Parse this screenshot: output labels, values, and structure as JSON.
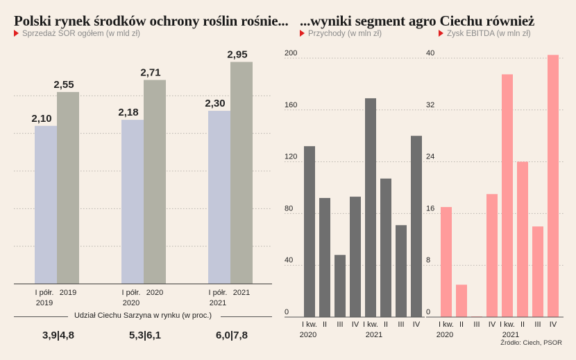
{
  "titles": {
    "left": "Polski rynek środków ochrony roślin rośnie...",
    "right": "...wyniki segment agro Ciechu również"
  },
  "share": {
    "heading": "Udział Ciechu Sarzyna w rynku (w proc.)",
    "values": [
      "3,9|4,8",
      "5,3|6,1",
      "6,0|7,8"
    ]
  },
  "source": "Źródło: Ciech, PSOR",
  "colors": {
    "background": "#f7efe6",
    "bar_first_half": "#c3c7d9",
    "bar_full_year": "#b1b1a5",
    "revenue_bar": "#6f6f6f",
    "ebitda_bar": "#ff9b9b",
    "marker": "#e02020"
  },
  "chart_data": [
    {
      "type": "bar",
      "title": "Polski rynek środków ochrony roślin rośnie...",
      "subtitle": "Sprzedaż ŚOR ogółem (w mld zł)",
      "groups": [
        {
          "year": "2019",
          "first_half_label": [
            "I półr.",
            "2019"
          ],
          "full_year_label": "2019",
          "first_half": 2.1,
          "full_year": 2.55
        },
        {
          "year": "2020",
          "first_half_label": [
            "I półr.",
            "2020"
          ],
          "full_year_label": "2020",
          "first_half": 2.18,
          "full_year": 2.71
        },
        {
          "year": "2021",
          "first_half_label": [
            "I półr.",
            "2021"
          ],
          "full_year_label": "2021",
          "first_half": 2.3,
          "full_year": 2.95
        }
      ],
      "data_labels": {
        "first_half": [
          "2,10",
          "2,18",
          "2,30"
        ],
        "full_year": [
          "2,55",
          "2,71",
          "2,95"
        ]
      },
      "ylim": [
        0,
        3.0
      ],
      "grid": true
    },
    {
      "type": "bar",
      "subtitle": "Przychody (w mln zł)",
      "categories": [
        "I kw.",
        "II",
        "III",
        "IV",
        "I kw.",
        "II",
        "III",
        "IV"
      ],
      "year_labels": [
        "2020",
        "2021"
      ],
      "values": [
        132,
        92,
        48,
        93,
        169,
        107,
        71,
        140
      ],
      "yticks": [
        "0",
        "40",
        "80",
        "120",
        "160",
        "200"
      ],
      "ylim": [
        0,
        200
      ],
      "grid": true
    },
    {
      "type": "bar",
      "subtitle": "Zysk EBITDA (w mln zł)",
      "categories": [
        "I kw.",
        "II",
        "III",
        "IV",
        "I kw.",
        "II",
        "III",
        "IV"
      ],
      "year_labels": [
        "2020",
        "2021"
      ],
      "values": [
        17,
        5,
        0,
        19,
        37.5,
        24,
        14,
        40.5
      ],
      "yticks": [
        "0",
        "8",
        "16",
        "24",
        "32",
        "40"
      ],
      "ylim": [
        0,
        40
      ],
      "grid": true
    }
  ]
}
